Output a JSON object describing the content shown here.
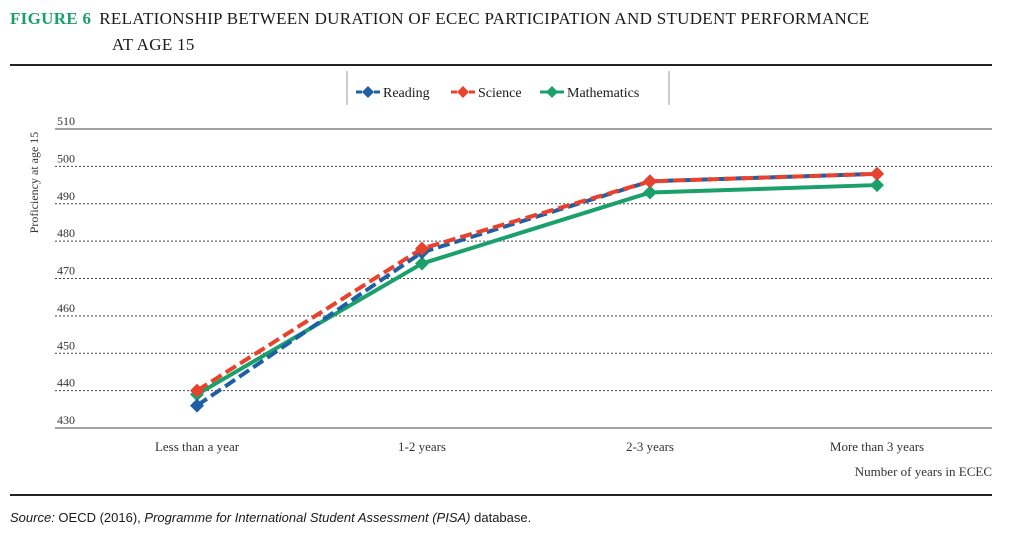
{
  "figure": {
    "label": "FIGURE 6",
    "title_line1": "RELATIONSHIP BETWEEN DURATION OF ECEC PARTICIPATION AND STUDENT PERFORMANCE",
    "title_line2": "AT AGE 15"
  },
  "source": {
    "prefix": "Source:",
    "text1": " OECD (2016), ",
    "italic": "Programme for International Student Assessment (PISA)",
    "text2": " database."
  },
  "colors": {
    "reading": "#1f5fa6",
    "science": "#e8412c",
    "mathematics": "#1aa06a",
    "grid": "#444444",
    "axis_text": "#333333"
  },
  "chart_data": {
    "type": "line",
    "categories": [
      "Less than a year",
      "1-2 years",
      "2-3 years",
      "More than 3 years"
    ],
    "series": [
      {
        "name": "Reading",
        "values": [
          436,
          477,
          496,
          498
        ],
        "style": "dashed",
        "marker": "diamond"
      },
      {
        "name": "Science",
        "values": [
          440,
          478,
          496,
          498
        ],
        "style": "dashed",
        "marker": "diamond"
      },
      {
        "name": "Mathematics",
        "values": [
          439,
          474,
          493,
          495
        ],
        "style": "solid",
        "marker": "diamond"
      }
    ],
    "yticks": [
      430,
      440,
      450,
      460,
      470,
      480,
      490,
      500,
      510
    ],
    "ylim": [
      430,
      510
    ],
    "ylabel": "Proficiency at age 15",
    "xlabel": "Number of years in ECEC",
    "grid": true,
    "legend_position": "top-center"
  }
}
